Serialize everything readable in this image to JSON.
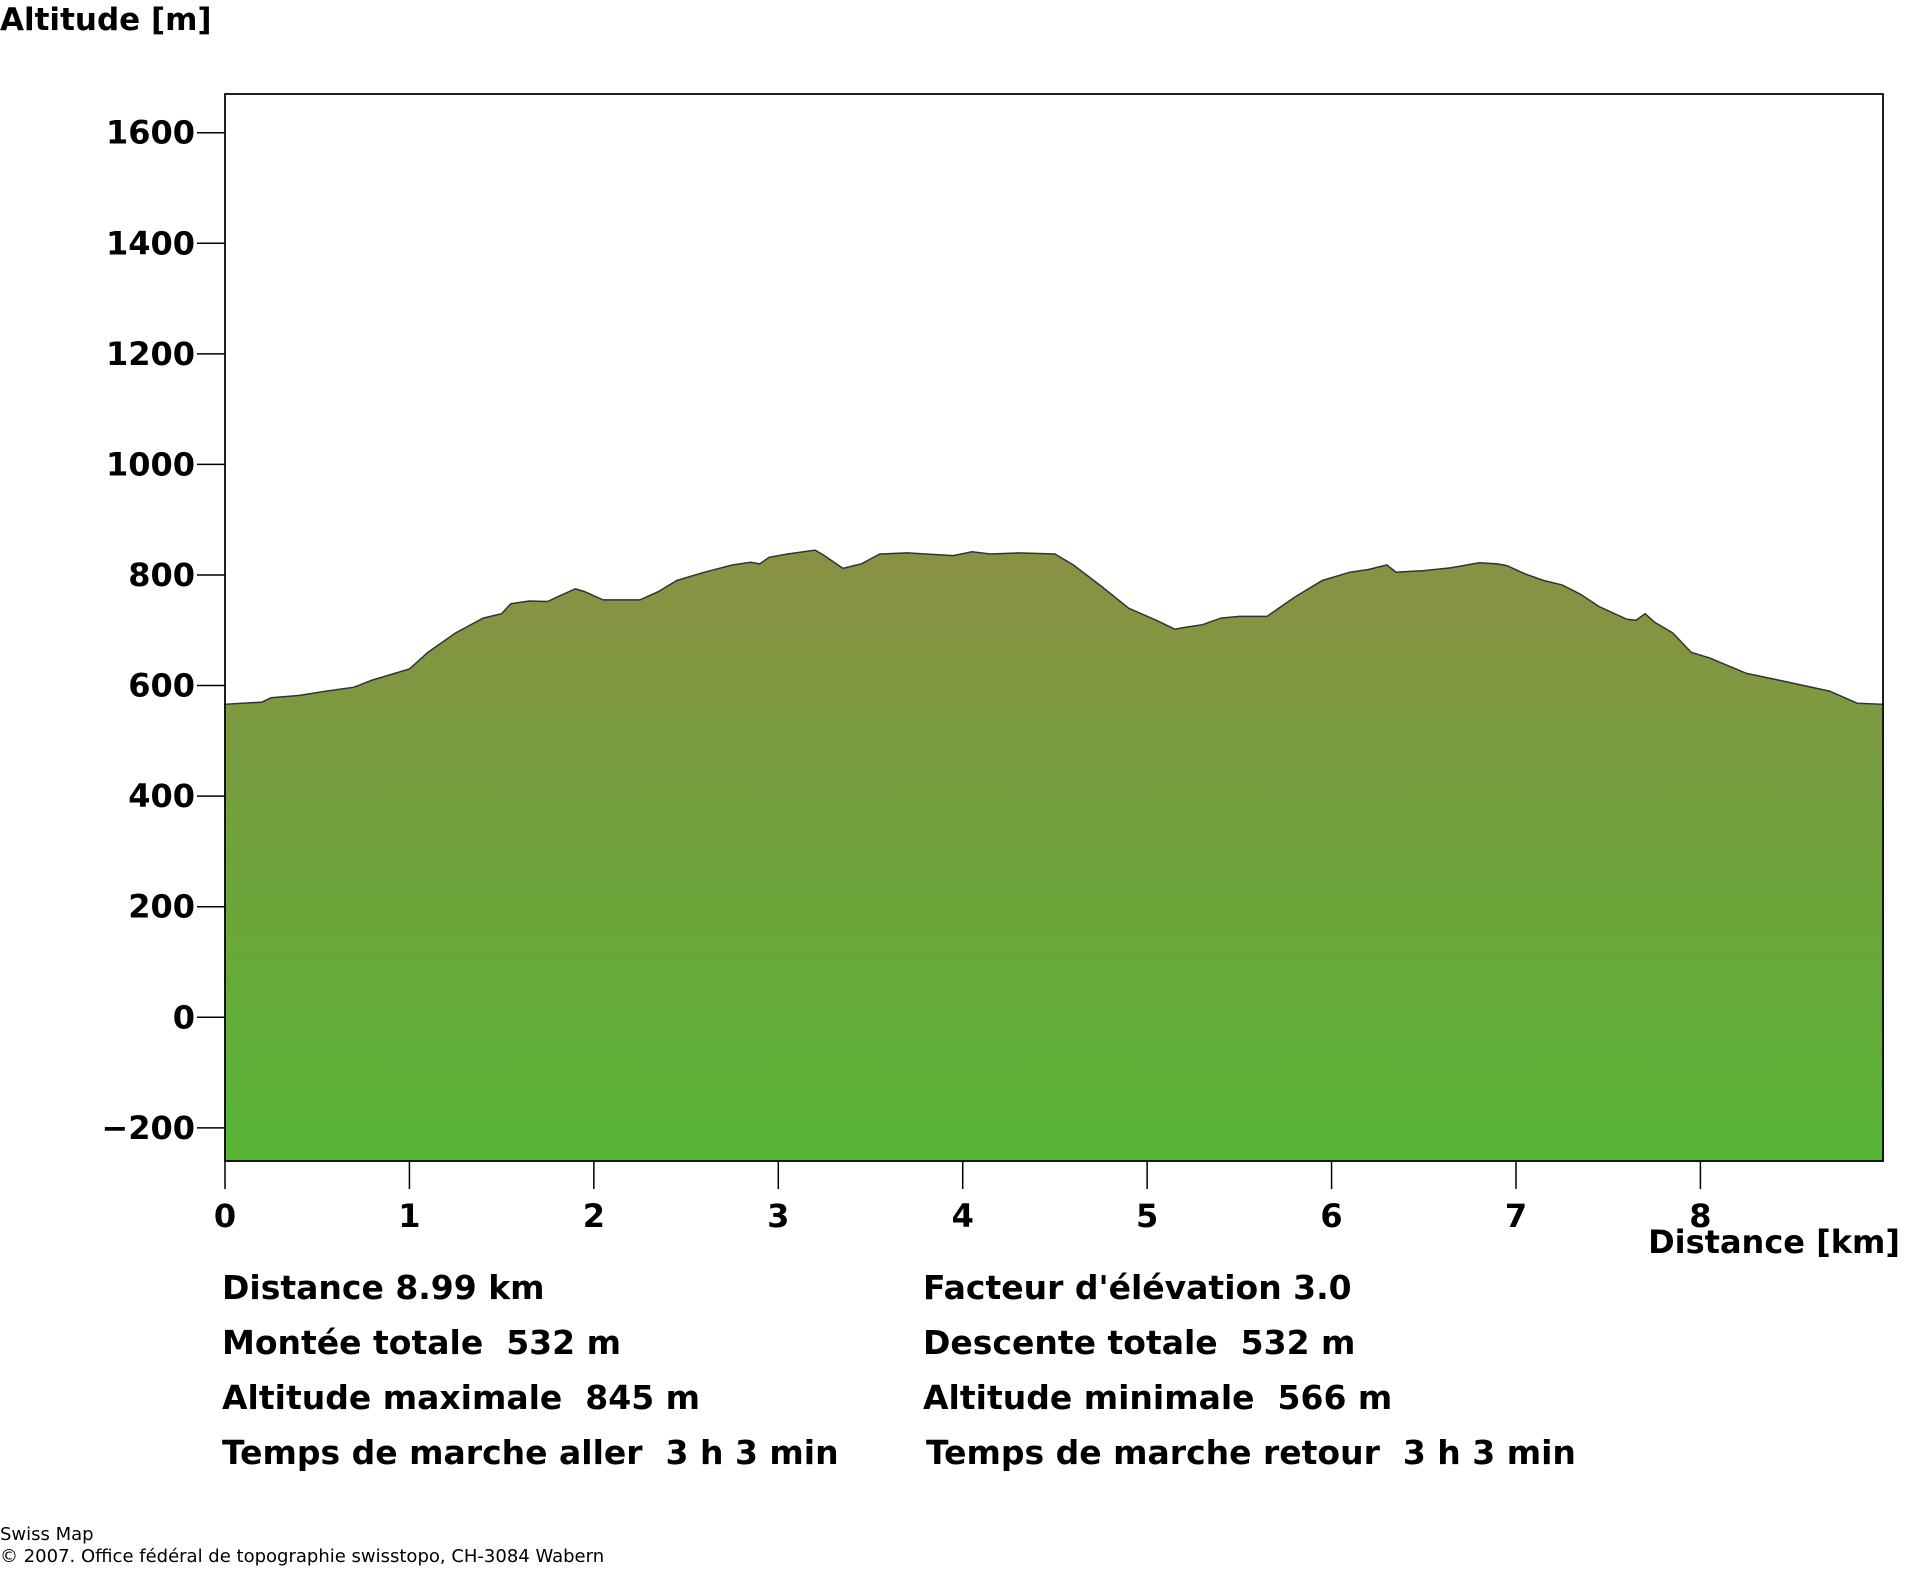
{
  "chart_data": {
    "type": "area",
    "ylabel": "Altitude [m]",
    "xlabel": "Distance [km]",
    "xlim": [
      0,
      8.99
    ],
    "ylim": [
      -260,
      1670
    ],
    "xticks": [
      0,
      1,
      2,
      3,
      4,
      5,
      6,
      7,
      8
    ],
    "yticks": [
      1600,
      1400,
      1200,
      1000,
      800,
      600,
      400,
      200,
      0,
      -200
    ],
    "fill_gradient": {
      "top": "#8a9044",
      "bottom": "#57b535"
    },
    "outline_color": "#333333",
    "grid": false,
    "x": [
      0,
      0.2,
      0.25,
      0.4,
      0.55,
      0.7,
      0.8,
      0.9,
      1.0,
      1.1,
      1.25,
      1.4,
      1.5,
      1.55,
      1.65,
      1.75,
      1.8,
      1.9,
      1.95,
      2.05,
      2.25,
      2.35,
      2.45,
      2.6,
      2.75,
      2.85,
      2.9,
      2.95,
      3.05,
      3.2,
      3.25,
      3.35,
      3.45,
      3.55,
      3.7,
      3.8,
      3.95,
      4.05,
      4.15,
      4.3,
      4.5,
      4.6,
      4.75,
      4.9,
      5.05,
      5.15,
      5.2,
      5.3,
      5.4,
      5.5,
      5.65,
      5.8,
      5.95,
      6.1,
      6.2,
      6.3,
      6.35,
      6.5,
      6.65,
      6.8,
      6.9,
      6.95,
      7.05,
      7.15,
      7.25,
      7.35,
      7.45,
      7.6,
      7.65,
      7.7,
      7.75,
      7.85,
      7.95,
      8.05,
      8.25,
      8.45,
      8.7,
      8.85,
      8.99
    ],
    "y": [
      566,
      570,
      578,
      582,
      590,
      597,
      610,
      620,
      630,
      660,
      695,
      722,
      730,
      748,
      753,
      752,
      760,
      775,
      770,
      755,
      755,
      770,
      790,
      805,
      818,
      823,
      820,
      832,
      838,
      845,
      835,
      812,
      820,
      838,
      840,
      838,
      835,
      842,
      838,
      840,
      838,
      818,
      780,
      740,
      718,
      702,
      705,
      710,
      722,
      725,
      725,
      760,
      790,
      805,
      810,
      818,
      805,
      808,
      813,
      822,
      820,
      817,
      802,
      790,
      782,
      765,
      743,
      720,
      718,
      730,
      715,
      695,
      660,
      650,
      622,
      608,
      590,
      568,
      566
    ]
  },
  "stats": {
    "left": [
      "Distance 8.99 km",
      "Montée totale  532 m",
      "Altitude maximale  845 m",
      "Temps de marche aller  3 h 3 min"
    ],
    "right": [
      "Facteur d'élévation 3.0",
      "Descente totale  532 m",
      "Altitude minimale  566 m",
      "Temps de marche retour  3 h 3 min"
    ]
  },
  "footer": {
    "line1": "Swiss Map",
    "line2": "© 2007. Office fédéral de topographie swisstopo, CH-3084 Wabern"
  }
}
